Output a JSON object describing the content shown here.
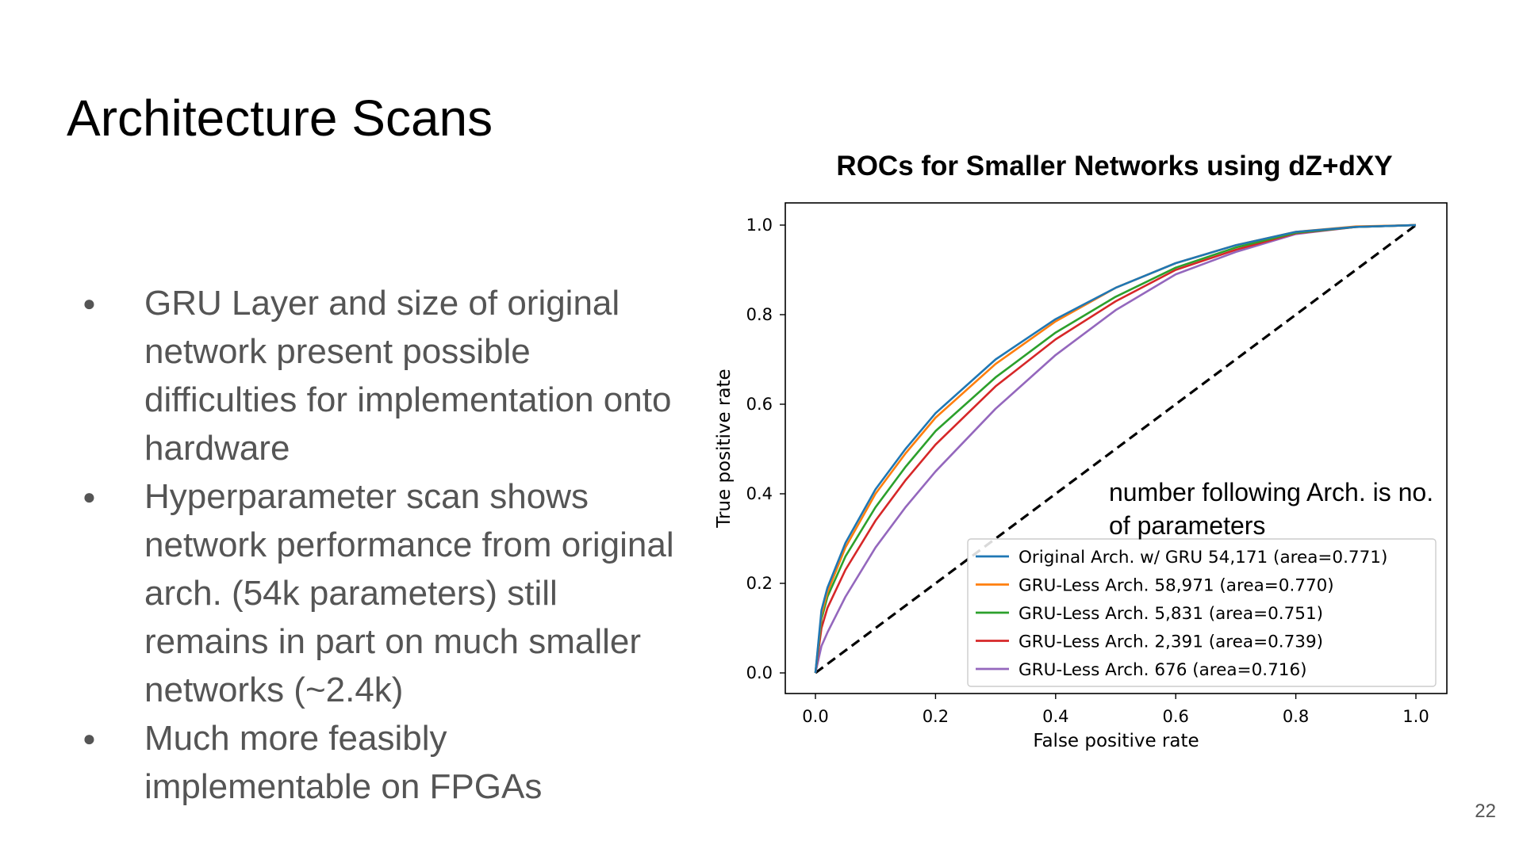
{
  "slide": {
    "title": "Architecture Scans",
    "bullets": [
      "GRU Layer and size of original network present possible difficulties for implementation onto hardware",
      "Hyperparameter scan shows network performance from original arch. (54k parameters) still remains in part on much smaller networks (~2.4k)",
      "Much more feasibly implementable on FPGAs"
    ],
    "note": "number following Arch. is no. of parameters",
    "page_number": "22"
  },
  "chart_data": {
    "type": "line",
    "title": "ROCs for Smaller Networks using dZ+dXY",
    "xlabel": "False positive rate",
    "ylabel": "True positive rate",
    "xlim": [
      0.0,
      1.0
    ],
    "ylim": [
      0.0,
      1.0
    ],
    "xticks": [
      "0.0",
      "0.2",
      "0.4",
      "0.6",
      "0.8",
      "1.0"
    ],
    "yticks": [
      "0.0",
      "0.2",
      "0.4",
      "0.6",
      "0.8",
      "1.0"
    ],
    "grid": false,
    "legend_position": "lower-right",
    "x": [
      0,
      0.01,
      0.02,
      0.05,
      0.1,
      0.15,
      0.2,
      0.3,
      0.4,
      0.5,
      0.6,
      0.7,
      0.8,
      0.9,
      1.0
    ],
    "series": [
      {
        "name": "Original Arch. w/ GRU 54,171 (area=0.771)",
        "color": "#1f77b4",
        "values": [
          0,
          0.14,
          0.19,
          0.29,
          0.41,
          0.5,
          0.58,
          0.7,
          0.79,
          0.86,
          0.915,
          0.955,
          0.985,
          0.996,
          1.0
        ]
      },
      {
        "name": "GRU-Less Arch. 58,971 (area=0.770)",
        "color": "#ff7f0e",
        "values": [
          0,
          0.13,
          0.18,
          0.28,
          0.4,
          0.49,
          0.57,
          0.69,
          0.785,
          0.86,
          0.915,
          0.955,
          0.985,
          0.997,
          1.0
        ]
      },
      {
        "name": "GRU-Less Arch. 5,831 (area=0.751)",
        "color": "#2ca02c",
        "values": [
          0,
          0.12,
          0.17,
          0.26,
          0.37,
          0.46,
          0.54,
          0.66,
          0.76,
          0.84,
          0.905,
          0.95,
          0.983,
          0.996,
          1.0
        ]
      },
      {
        "name": "GRU-Less Arch. 2,391 (area=0.739)",
        "color": "#d62728",
        "values": [
          0,
          0.1,
          0.145,
          0.23,
          0.34,
          0.43,
          0.51,
          0.64,
          0.745,
          0.83,
          0.9,
          0.945,
          0.982,
          0.996,
          1.0
        ]
      },
      {
        "name": "GRU-Less Arch. 676 (area=0.716)",
        "color": "#9467bd",
        "values": [
          0,
          0.06,
          0.09,
          0.17,
          0.28,
          0.37,
          0.45,
          0.59,
          0.71,
          0.81,
          0.89,
          0.94,
          0.98,
          0.996,
          1.0
        ]
      }
    ],
    "reference_line": {
      "x": [
        0,
        1
      ],
      "y": [
        0,
        1
      ],
      "style": "dashed",
      "color": "#000000"
    }
  }
}
